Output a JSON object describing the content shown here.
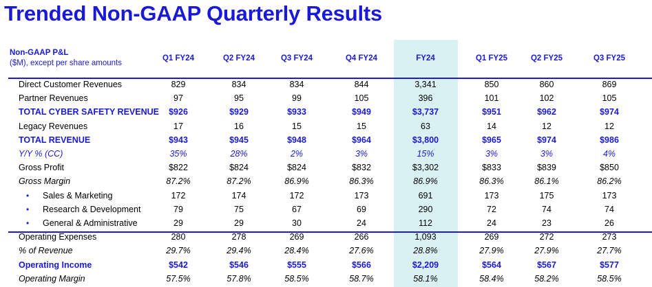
{
  "title": "Trended Non-GAAP Quarterly Results",
  "header": {
    "line1": "Non-GAAP P&L",
    "line2": "($M), except per share amounts",
    "columns": [
      "Q1 FY24",
      "Q2 FY24",
      "Q3 FY24",
      "Q4 FY24",
      "FY24",
      "Q1 FY25",
      "Q2 FY25",
      "Q3 FY25"
    ]
  },
  "highlight_color": "#daf1f3",
  "accent_color": "#1a1ad6",
  "rows": [
    {
      "label": "Direct Customer Revenues",
      "style": "normal",
      "values": [
        "829",
        "834",
        "834",
        "844",
        "3,341",
        "850",
        "860",
        "869"
      ]
    },
    {
      "label": "Partner Revenues",
      "style": "normal",
      "values": [
        "97",
        "95",
        "99",
        "105",
        "396",
        "101",
        "102",
        "105"
      ]
    },
    {
      "label": "TOTAL CYBER SAFETY REVENUE",
      "style": "bold",
      "values": [
        "$926",
        "$929",
        "$933",
        "$949",
        "$3,737",
        "$951",
        "$962",
        "$974"
      ]
    },
    {
      "label": "Legacy Revenues",
      "style": "normal",
      "values": [
        "17",
        "16",
        "15",
        "15",
        "63",
        "14",
        "12",
        "12"
      ]
    },
    {
      "label": "TOTAL REVENUE",
      "style": "bold",
      "values": [
        "$943",
        "$945",
        "$948",
        "$964",
        "$3,800",
        "$965",
        "$974",
        "$986"
      ]
    },
    {
      "label": "Y/Y % (CC)",
      "style": "italic-blue",
      "values": [
        "35%",
        "28%",
        "2%",
        "3%",
        "15%",
        "3%",
        "3%",
        "4%"
      ]
    },
    {
      "label": "Gross Profit",
      "style": "normal",
      "values": [
        "$822",
        "$824",
        "$824",
        "$832",
        "$3,302",
        "$833",
        "$839",
        "$850"
      ]
    },
    {
      "label": "Gross Margin",
      "style": "italic",
      "values": [
        "87.2%",
        "87.2%",
        "86.9%",
        "86.3%",
        "86.9%",
        "86.3%",
        "86.1%",
        "86.2%"
      ]
    },
    {
      "label": "Sales & Marketing",
      "style": "sub",
      "values": [
        "172",
        "174",
        "172",
        "173",
        "691",
        "173",
        "175",
        "173"
      ]
    },
    {
      "label": "Research & Development",
      "style": "sub",
      "values": [
        "79",
        "75",
        "67",
        "69",
        "290",
        "72",
        "74",
        "74"
      ]
    },
    {
      "label": "General & Administrative",
      "style": "sub",
      "values": [
        "29",
        "29",
        "30",
        "24",
        "112",
        "24",
        "23",
        "26"
      ]
    },
    {
      "label": "Operating Expenses",
      "style": "normal",
      "values": [
        "280",
        "278",
        "269",
        "266",
        "1,093",
        "269",
        "272",
        "273"
      ]
    },
    {
      "label": "% of Revenue",
      "style": "italic",
      "values": [
        "29.7%",
        "29.4%",
        "28.4%",
        "27.6%",
        "28.8%",
        "27.9%",
        "27.9%",
        "27.7%"
      ]
    },
    {
      "label": "Operating Income",
      "style": "bold",
      "values": [
        "$542",
        "$546",
        "$555",
        "$566",
        "$2,209",
        "$564",
        "$567",
        "$577"
      ]
    },
    {
      "label": "Operating Margin",
      "style": "italic",
      "values": [
        "57.5%",
        "57.8%",
        "58.5%",
        "58.7%",
        "58.1%",
        "58.4%",
        "58.2%",
        "58.5%"
      ]
    }
  ]
}
